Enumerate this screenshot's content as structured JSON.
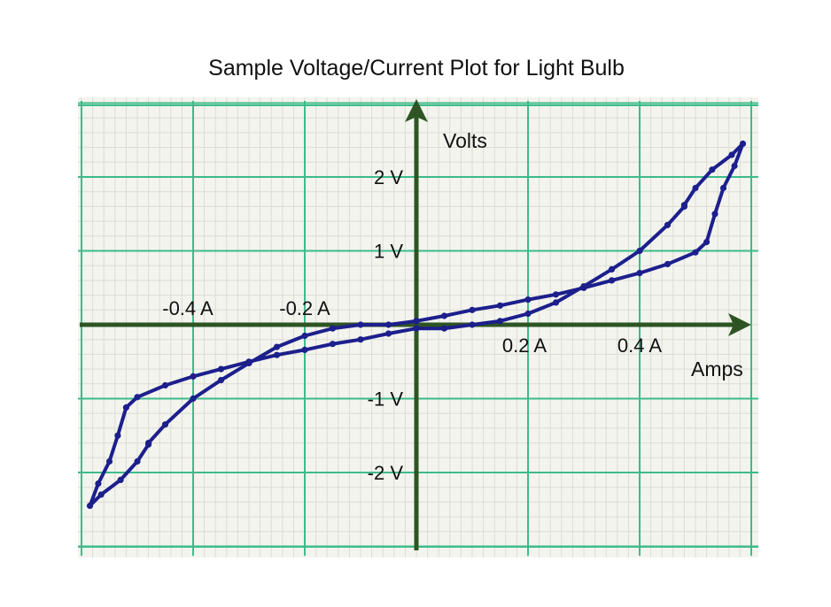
{
  "chart_data": {
    "type": "line",
    "title": "Sample Voltage/Current Plot for Light Bulb",
    "xlabel": "Amps",
    "ylabel": "Volts",
    "xlim": [
      -0.6,
      0.6
    ],
    "ylim": [
      -3.0,
      3.0
    ],
    "x_ticks": [
      {
        "value": -0.4,
        "label": "-0.4 A"
      },
      {
        "value": -0.2,
        "label": "-0.2 A"
      },
      {
        "value": 0.2,
        "label": "0.2 A"
      },
      {
        "value": 0.4,
        "label": "0.4 A"
      }
    ],
    "y_ticks": [
      {
        "value": 2,
        "label": "2 V"
      },
      {
        "value": 1,
        "label": "1 V"
      },
      {
        "value": -1,
        "label": "-1 V"
      },
      {
        "value": -2,
        "label": "-2 V"
      }
    ],
    "grid": true,
    "colors": {
      "grid_major": "#3dbb8b",
      "grid_minor": "#dcdcd4",
      "background": "#f3f4ee",
      "axes": "#2e5424",
      "series": "#1c1f8c"
    },
    "series": [
      {
        "x": [
          0.0,
          0.05,
          0.1,
          0.15,
          0.2,
          0.25,
          0.3,
          0.35,
          0.4,
          0.45,
          0.5,
          0.52,
          0.535,
          0.55,
          0.57,
          0.585,
          0.565,
          0.53,
          0.5,
          0.48,
          0.48,
          0.45,
          0.4,
          0.35,
          0.3,
          0.25,
          0.2,
          0.15,
          0.1,
          0.05,
          0.0,
          -0.05,
          -0.1,
          -0.15,
          -0.2,
          -0.25,
          -0.3,
          -0.35,
          -0.4,
          -0.45,
          -0.5,
          -0.52,
          -0.535,
          -0.55,
          -0.57,
          -0.585,
          -0.565,
          -0.53,
          -0.5,
          -0.48,
          -0.48,
          -0.45,
          -0.4,
          -0.35,
          -0.3,
          -0.25,
          -0.2,
          -0.15,
          -0.1,
          -0.05,
          0.0
        ],
        "y": [
          0.05,
          0.12,
          0.2,
          0.26,
          0.34,
          0.41,
          0.5,
          0.6,
          0.7,
          0.82,
          0.98,
          1.12,
          1.5,
          1.85,
          2.15,
          2.45,
          2.3,
          2.1,
          1.85,
          1.62,
          1.6,
          1.35,
          1.0,
          0.75,
          0.52,
          0.3,
          0.15,
          0.05,
          0.0,
          -0.05,
          -0.05,
          -0.12,
          -0.2,
          -0.26,
          -0.34,
          -0.41,
          -0.5,
          -0.6,
          -0.7,
          -0.82,
          -0.98,
          -1.12,
          -1.5,
          -1.85,
          -2.15,
          -2.45,
          -2.3,
          -2.1,
          -1.85,
          -1.62,
          -1.6,
          -1.35,
          -1.0,
          -0.75,
          -0.52,
          -0.3,
          -0.15,
          -0.05,
          0.0,
          0.0,
          0.05
        ]
      }
    ]
  }
}
